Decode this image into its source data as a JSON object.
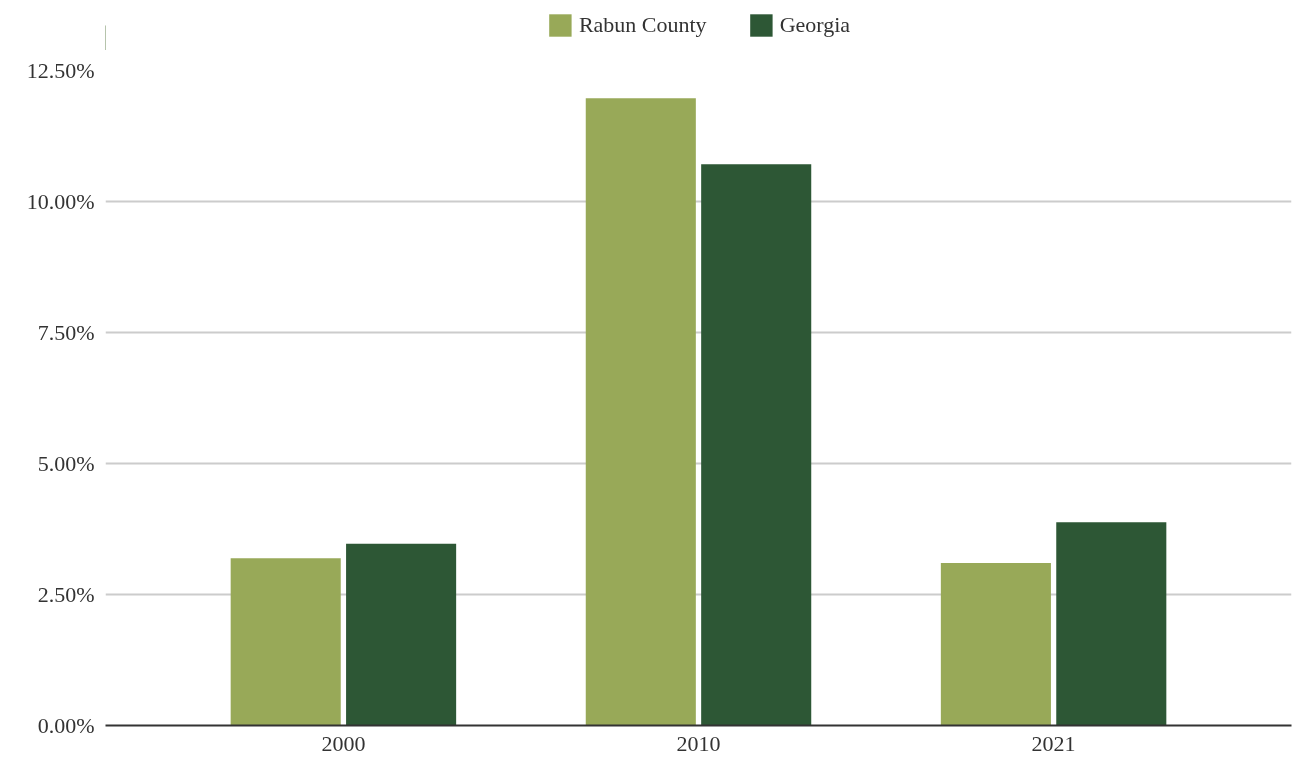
{
  "chart_data": {
    "type": "bar",
    "categories": [
      "2000",
      "2010",
      "2021"
    ],
    "series": [
      {
        "name": "Rabun County",
        "color": "#98a958",
        "values": [
          3.19,
          11.97,
          3.1
        ]
      },
      {
        "name": "Georgia",
        "color": "#2d5735",
        "values": [
          3.47,
          10.71,
          3.88
        ]
      }
    ],
    "ylim": [
      0,
      12.5
    ],
    "yticks": [
      {
        "value": 0,
        "label": "0.00%"
      },
      {
        "value": 2.5,
        "label": "2.50%"
      },
      {
        "value": 5,
        "label": "5.00%"
      },
      {
        "value": 7.5,
        "label": "7.50%"
      },
      {
        "value": 10,
        "label": "10.00%"
      },
      {
        "value": 12.5,
        "label": "12.50%"
      }
    ],
    "grid": "y",
    "legend": "top"
  }
}
